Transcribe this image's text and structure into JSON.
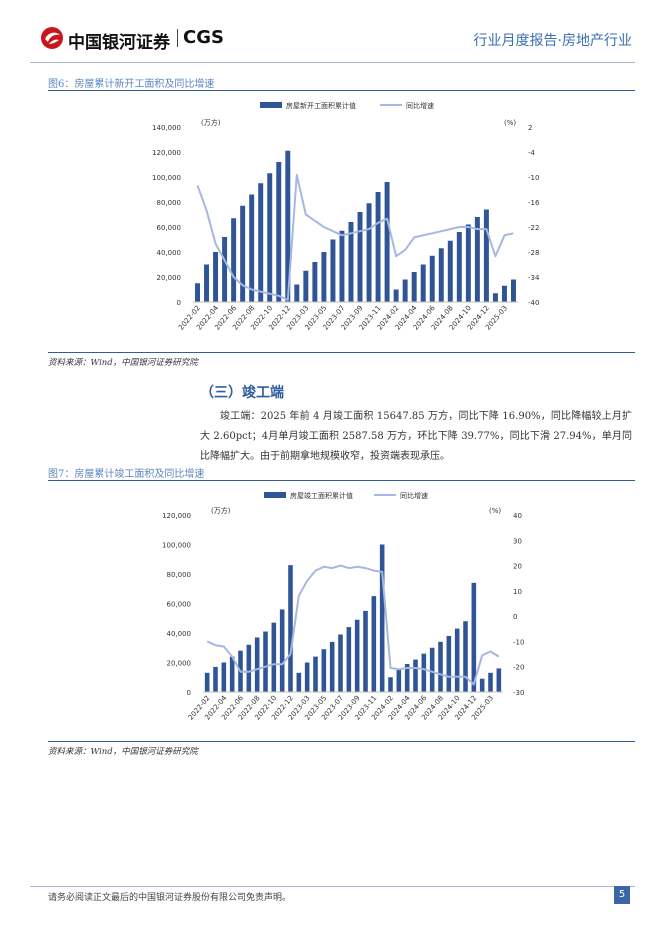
{
  "header": {
    "logo_cn": "中国银河证券",
    "logo_en": "CGS",
    "report_type": "行业月度报告·房地产行业"
  },
  "colors": {
    "bar": "#2f5597",
    "line": "#a6b8df",
    "accent": "#2f5e9e"
  },
  "figure6": {
    "caption": "图6：房屋累计新开工面积及同比增速",
    "source": "资料来源：Wind，中国银河证券研究院"
  },
  "figure7": {
    "caption": "图7：房屋累计竣工面积及同比增速",
    "source": "资料来源：Wind，中国银河证券研究院"
  },
  "section": {
    "heading": "（三）竣工端",
    "paragraph": "竣工端：2025 年前 4 月竣工面积 15647.85 万方，同比下降 16.90%，同比降幅较上月扩大 2.60pct；4月单月竣工面积 2587.58 万方，环比下降 39.77%，同比下滑 27.94%，单月同比降幅扩大。由于前期拿地规模收窄，投资端表现承压。"
  },
  "footer": {
    "disclaimer": "请务必阅读正文最后的中国银河证券股份有限公司免责声明。",
    "page": "5"
  },
  "chart_data": [
    {
      "type": "bar",
      "title": "房屋累计新开工面积及同比增速",
      "legend": [
        "房屋新开工面积累计值",
        "同比增速"
      ],
      "left_unit": "(万方)",
      "right_unit": "(%)",
      "left_ticks": [
        "140,000",
        "120,000",
        "100,000",
        "80,000",
        "60,000",
        "40,000",
        "20,000",
        "0"
      ],
      "right_ticks": [
        "2",
        "-4",
        "-10",
        "-16",
        "-22",
        "-28",
        "-34",
        "-40"
      ],
      "ylim_left": [
        0,
        140000
      ],
      "ylim_right": [
        -40,
        2
      ],
      "x_tick_labels": [
        "2022-02",
        "2022-04",
        "2022-06",
        "2022-08",
        "2022-10",
        "2022-12",
        "2023-03",
        "2023-05",
        "2023-07",
        "2023-09",
        "2023-11",
        "2024-02",
        "2024-04",
        "2024-06",
        "2024-08",
        "2024-10",
        "2024-12",
        "2025-03"
      ],
      "x_tick_index": [
        0,
        2,
        4,
        6,
        8,
        10,
        12,
        14,
        16,
        18,
        20,
        22,
        24,
        26,
        28,
        30,
        32,
        34
      ],
      "series": [
        {
          "name": "房屋新开工面积累计值",
          "kind": "bar",
          "values": [
            15000,
            30000,
            40000,
            52000,
            67000,
            77000,
            86000,
            95000,
            103000,
            112000,
            121000,
            14000,
            25000,
            32000,
            40000,
            50000,
            57000,
            64000,
            72000,
            79000,
            88000,
            96000,
            10000,
            18000,
            24000,
            30000,
            37000,
            43000,
            49000,
            56000,
            62000,
            68000,
            74000,
            7000,
            13000,
            18000
          ]
        },
        {
          "name": "同比增速",
          "kind": "line",
          "values": [
            -12,
            -18,
            -26,
            -30,
            -34,
            -36,
            -37,
            -37.5,
            -38,
            -38.5,
            -39.5,
            -9.5,
            -19,
            -20.5,
            -22,
            -23,
            -24,
            -23.5,
            -23,
            -22.5,
            -21,
            -20,
            -29,
            -27.5,
            -24.5,
            -24,
            -23.5,
            -23,
            -22.5,
            -22,
            -22,
            -22.5,
            -22.5,
            -29,
            -24,
            -23.5
          ]
        }
      ]
    },
    {
      "type": "bar",
      "title": "房屋累计竣工面积及同比增速",
      "legend": [
        "房屋竣工面积累计值",
        "同比增速"
      ],
      "left_unit": "(万方)",
      "right_unit": "(%)",
      "left_ticks": [
        "120,000",
        "100,000",
        "80,000",
        "60,000",
        "40,000",
        "20,000",
        "0"
      ],
      "right_ticks": [
        "40",
        "30",
        "20",
        "10",
        "0",
        "-10",
        "-20",
        "-30"
      ],
      "ylim_left": [
        0,
        120000
      ],
      "ylim_right": [
        -30,
        40
      ],
      "x_tick_labels": [
        "2022-02",
        "2022-04",
        "2022-06",
        "2022-08",
        "2022-10",
        "2022-12",
        "2023-03",
        "2023-05",
        "2023-07",
        "2023-09",
        "2023-11",
        "2024-02",
        "2024-04",
        "2024-06",
        "2024-08",
        "2024-10",
        "2024-12",
        "2025-03"
      ],
      "x_tick_index": [
        0,
        2,
        4,
        6,
        8,
        10,
        12,
        14,
        16,
        18,
        20,
        22,
        24,
        26,
        28,
        30,
        32,
        34
      ],
      "series": [
        {
          "name": "房屋竣工面积累计值",
          "kind": "bar",
          "values": [
            13000,
            17000,
            20000,
            24000,
            28000,
            32000,
            37000,
            41000,
            47000,
            56000,
            86000,
            13000,
            20000,
            24000,
            29000,
            34000,
            39000,
            44000,
            49000,
            55000,
            65000,
            100000,
            10000,
            15000,
            19000,
            22000,
            26000,
            30000,
            34000,
            38000,
            43000,
            48000,
            74000,
            9000,
            13000,
            16000
          ]
        },
        {
          "name": "同比增速",
          "kind": "line",
          "values": [
            -10,
            -11.5,
            -12,
            -16,
            -22,
            -22,
            -21,
            -20,
            -19,
            -19,
            -15,
            8,
            14,
            18,
            19.5,
            19,
            20,
            19,
            19.5,
            19,
            18,
            17.5,
            -20.5,
            -21,
            -20.5,
            -20.5,
            -21,
            -22,
            -23,
            -24,
            -24,
            -24,
            -27,
            -15.5,
            -14,
            -16
          ]
        }
      ]
    }
  ]
}
